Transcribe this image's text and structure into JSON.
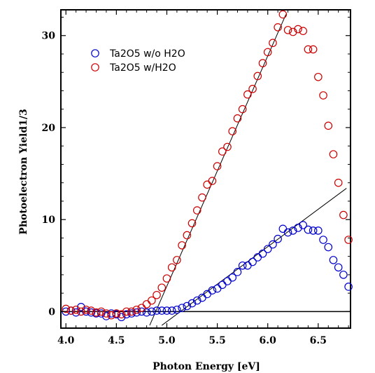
{
  "chart_data": {
    "type": "scatter",
    "xlabel": "Photon Energy [eV]",
    "ylabel": "Photoelectron Yield1/3",
    "xlim": [
      3.95,
      6.82
    ],
    "ylim": [
      -1.8,
      32.8
    ],
    "xticks": [
      4.0,
      4.5,
      5.0,
      5.5,
      6.0,
      6.5
    ],
    "xtick_labels": [
      "4.0",
      "4.5",
      "5.0",
      "5.5",
      "6.0",
      "6.5"
    ],
    "yticks": [
      0,
      10,
      20,
      30
    ],
    "ytick_labels": [
      "0",
      "10",
      "20",
      "30"
    ],
    "legend_position": "top-left",
    "zero_line": true,
    "series": [
      {
        "name": "Ta2O5 w/o H2O",
        "color": "#0000cc",
        "marker": "open-circle",
        "x": [
          4.0,
          4.05,
          4.1,
          4.15,
          4.2,
          4.25,
          4.3,
          4.35,
          4.4,
          4.45,
          4.5,
          4.55,
          4.6,
          4.65,
          4.7,
          4.75,
          4.8,
          4.85,
          4.9,
          4.95,
          5.0,
          5.05,
          5.1,
          5.15,
          5.2,
          5.25,
          5.3,
          5.35,
          5.4,
          5.45,
          5.5,
          5.55,
          5.6,
          5.65,
          5.7,
          5.75,
          5.8,
          5.85,
          5.9,
          5.95,
          6.0,
          6.05,
          6.1,
          6.15,
          6.2,
          6.25,
          6.3,
          6.35,
          6.4,
          6.45,
          6.5,
          6.55,
          6.6,
          6.65,
          6.7,
          6.75,
          6.8
        ],
        "y": [
          0.0,
          0.1,
          -0.1,
          0.5,
          0.0,
          -0.1,
          -0.2,
          -0.2,
          -0.5,
          -0.2,
          -0.3,
          -0.6,
          -0.3,
          -0.2,
          -0.1,
          0.0,
          -0.1,
          0.0,
          0.1,
          0.1,
          0.1,
          0.1,
          0.2,
          0.4,
          0.6,
          0.9,
          1.2,
          1.5,
          1.9,
          2.3,
          2.5,
          2.9,
          3.3,
          3.7,
          4.3,
          5.0,
          5.0,
          5.4,
          5.9,
          6.3,
          6.8,
          7.3,
          7.9,
          9.0,
          8.6,
          8.8,
          9.1,
          9.4,
          8.9,
          8.8,
          8.8,
          7.8,
          7.0,
          5.6,
          4.8,
          4.0,
          2.7
        ]
      },
      {
        "name": "Ta2O5 w/H2O",
        "color": "#cc0000",
        "marker": "open-circle",
        "x": [
          4.0,
          4.05,
          4.1,
          4.15,
          4.2,
          4.25,
          4.3,
          4.35,
          4.4,
          4.45,
          4.5,
          4.55,
          4.6,
          4.65,
          4.7,
          4.75,
          4.8,
          4.85,
          4.9,
          4.95,
          5.0,
          5.05,
          5.1,
          5.15,
          5.2,
          5.25,
          5.3,
          5.35,
          5.4,
          5.45,
          5.5,
          5.55,
          5.6,
          5.65,
          5.7,
          5.75,
          5.8,
          5.85,
          5.9,
          5.95,
          6.0,
          6.05,
          6.1,
          6.15,
          6.2,
          6.25,
          6.3,
          6.35,
          6.4,
          6.45,
          6.5,
          6.55,
          6.6,
          6.65,
          6.7,
          6.75,
          6.8
        ],
        "y": [
          0.3,
          0.1,
          0.2,
          0.0,
          0.2,
          0.1,
          -0.1,
          0.0,
          -0.2,
          -0.4,
          -0.2,
          -0.3,
          0.0,
          0.0,
          0.2,
          0.4,
          0.8,
          1.2,
          1.8,
          2.6,
          3.6,
          4.8,
          5.6,
          7.2,
          8.3,
          9.6,
          11.0,
          12.4,
          13.8,
          14.2,
          15.8,
          17.4,
          17.9,
          19.6,
          21.0,
          22.0,
          23.6,
          24.2,
          25.6,
          27.0,
          28.2,
          29.2,
          30.9,
          32.3,
          30.6,
          30.4,
          30.7,
          30.5,
          28.5,
          28.5,
          25.5,
          23.5,
          20.2,
          17.1,
          14.0,
          10.5,
          7.8
        ]
      }
    ],
    "fit_lines": [
      {
        "x": [
          4.83,
          6.18
        ],
        "y": [
          -1.5,
          32.3
        ]
      },
      {
        "x": [
          4.95,
          6.78
        ],
        "y": [
          -1.5,
          13.4
        ]
      }
    ]
  }
}
